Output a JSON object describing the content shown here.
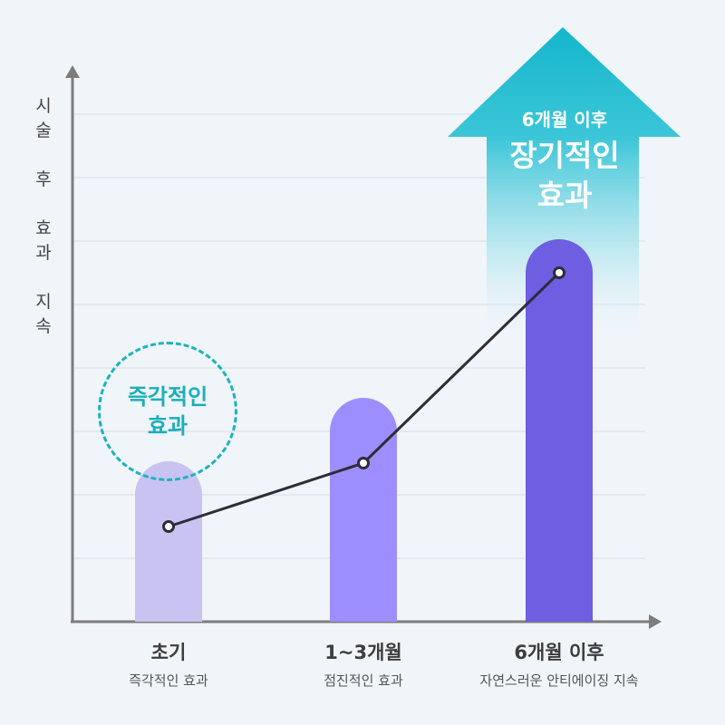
{
  "chart_data": {
    "type": "bar",
    "ylabel": "시술 후 효과 지속",
    "categories": [
      "초기",
      "1~3개월",
      "6개월 이후"
    ],
    "descriptions": [
      "즉각적인 효과",
      "점진적인 효과",
      "자연스러운 안티에이징 지속"
    ],
    "values": [
      2,
      3,
      5.5
    ],
    "line_values": [
      1.5,
      2.5,
      5.5
    ],
    "ylim": [
      0,
      8
    ],
    "grid": true,
    "colors": [
      "#c9c3f2",
      "#9d8eff",
      "#6e5ee2"
    ],
    "line_color": "#2e2c3a"
  },
  "annotations": {
    "early_badge": [
      "즉각적인",
      "효과"
    ],
    "arrow_top": "6개월 이후",
    "arrow_main": [
      "장기적인",
      "효과"
    ],
    "arrow_color": "#1cb9cc"
  }
}
